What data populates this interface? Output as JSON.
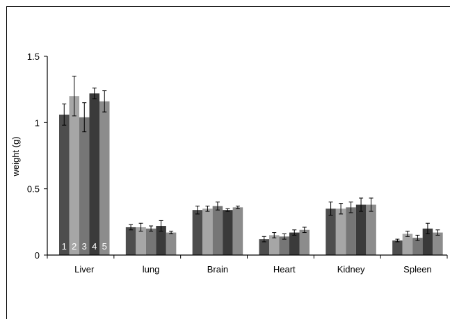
{
  "chart_data": {
    "type": "bar",
    "title": "",
    "xlabel": "",
    "ylabel": "weight (g)",
    "ylim": [
      0,
      1.5
    ],
    "yticks": [
      "0",
      "0.5",
      "1",
      "1.5"
    ],
    "grid": false,
    "categories": [
      "Liver",
      "lung",
      "Brain",
      "Heart",
      "Kidney",
      "Spleen"
    ],
    "series_labels": [
      "1",
      "2",
      "3",
      "4",
      "5"
    ],
    "series": [
      {
        "name": "1",
        "color": "#4d4d4d",
        "values": [
          1.06,
          0.21,
          0.34,
          0.12,
          0.35,
          0.11
        ],
        "errors": [
          0.08,
          0.02,
          0.03,
          0.02,
          0.05,
          0.01
        ]
      },
      {
        "name": "2",
        "color": "#a6a6a6",
        "values": [
          1.2,
          0.21,
          0.35,
          0.15,
          0.35,
          0.16
        ],
        "errors": [
          0.15,
          0.03,
          0.02,
          0.02,
          0.04,
          0.02
        ]
      },
      {
        "name": "3",
        "color": "#767676",
        "values": [
          1.04,
          0.2,
          0.37,
          0.14,
          0.36,
          0.13
        ],
        "errors": [
          0.11,
          0.02,
          0.03,
          0.02,
          0.04,
          0.02
        ]
      },
      {
        "name": "4",
        "color": "#3a3a3a",
        "values": [
          1.22,
          0.22,
          0.34,
          0.17,
          0.38,
          0.2
        ],
        "errors": [
          0.04,
          0.04,
          0.01,
          0.02,
          0.05,
          0.04
        ]
      },
      {
        "name": "5",
        "color": "#8c8c8c",
        "values": [
          1.16,
          0.17,
          0.36,
          0.19,
          0.38,
          0.17
        ],
        "errors": [
          0.08,
          0.01,
          0.01,
          0.02,
          0.05,
          0.02
        ]
      }
    ]
  }
}
